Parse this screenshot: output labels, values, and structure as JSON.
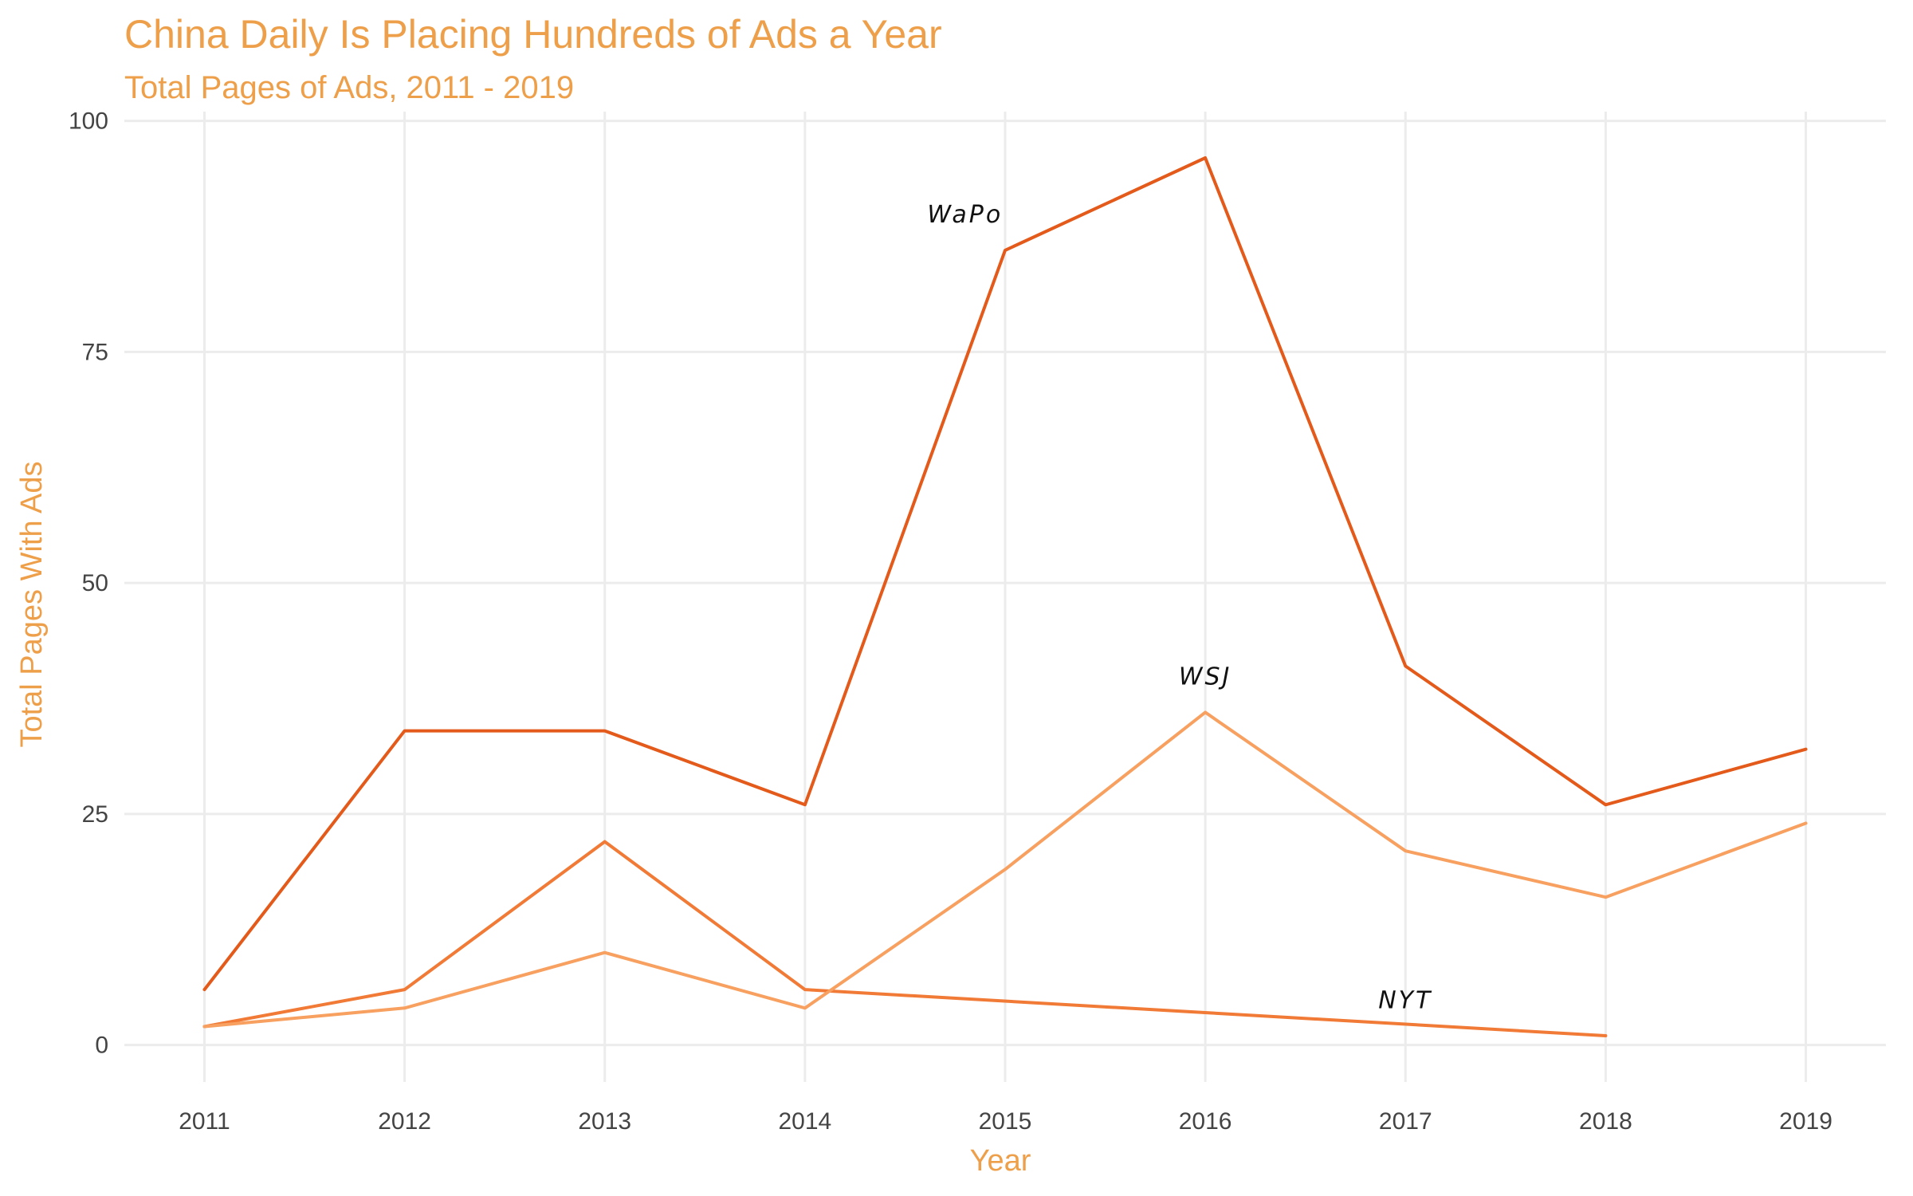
{
  "chart_data": {
    "type": "line",
    "title": "China Daily Is Placing Hundreds of Ads a Year",
    "subtitle": "Total Pages of Ads, 2011 - 2019",
    "xlabel": "Year",
    "ylabel": "Total Pages With Ads",
    "x": [
      2011,
      2012,
      2013,
      2014,
      2015,
      2016,
      2017,
      2018,
      2019
    ],
    "xlim": [
      2010.6,
      2019.4
    ],
    "ylim": [
      -4,
      101
    ],
    "yticks": [
      0,
      25,
      50,
      75,
      100
    ],
    "grid": true,
    "legend": "none",
    "series": [
      {
        "key": "wapo",
        "color": "#e35a1a",
        "values": [
          6,
          34,
          34,
          26,
          86,
          96,
          41,
          26,
          32
        ]
      },
      {
        "key": "nyt",
        "color": "#f07a36",
        "values": [
          2,
          6,
          22,
          6,
          null,
          null,
          null,
          1,
          null
        ]
      },
      {
        "key": "wsj",
        "color": "#f7a060",
        "values": [
          2,
          4,
          10,
          4,
          19,
          36,
          21,
          16,
          24
        ]
      }
    ],
    "annotations": [
      {
        "text": "WaPo",
        "x": 2014.8,
        "y": 89
      },
      {
        "text": "WSJ",
        "x": 2016.0,
        "y": 39
      },
      {
        "text": "NYT",
        "x": 2017.0,
        "y": 4
      }
    ]
  }
}
